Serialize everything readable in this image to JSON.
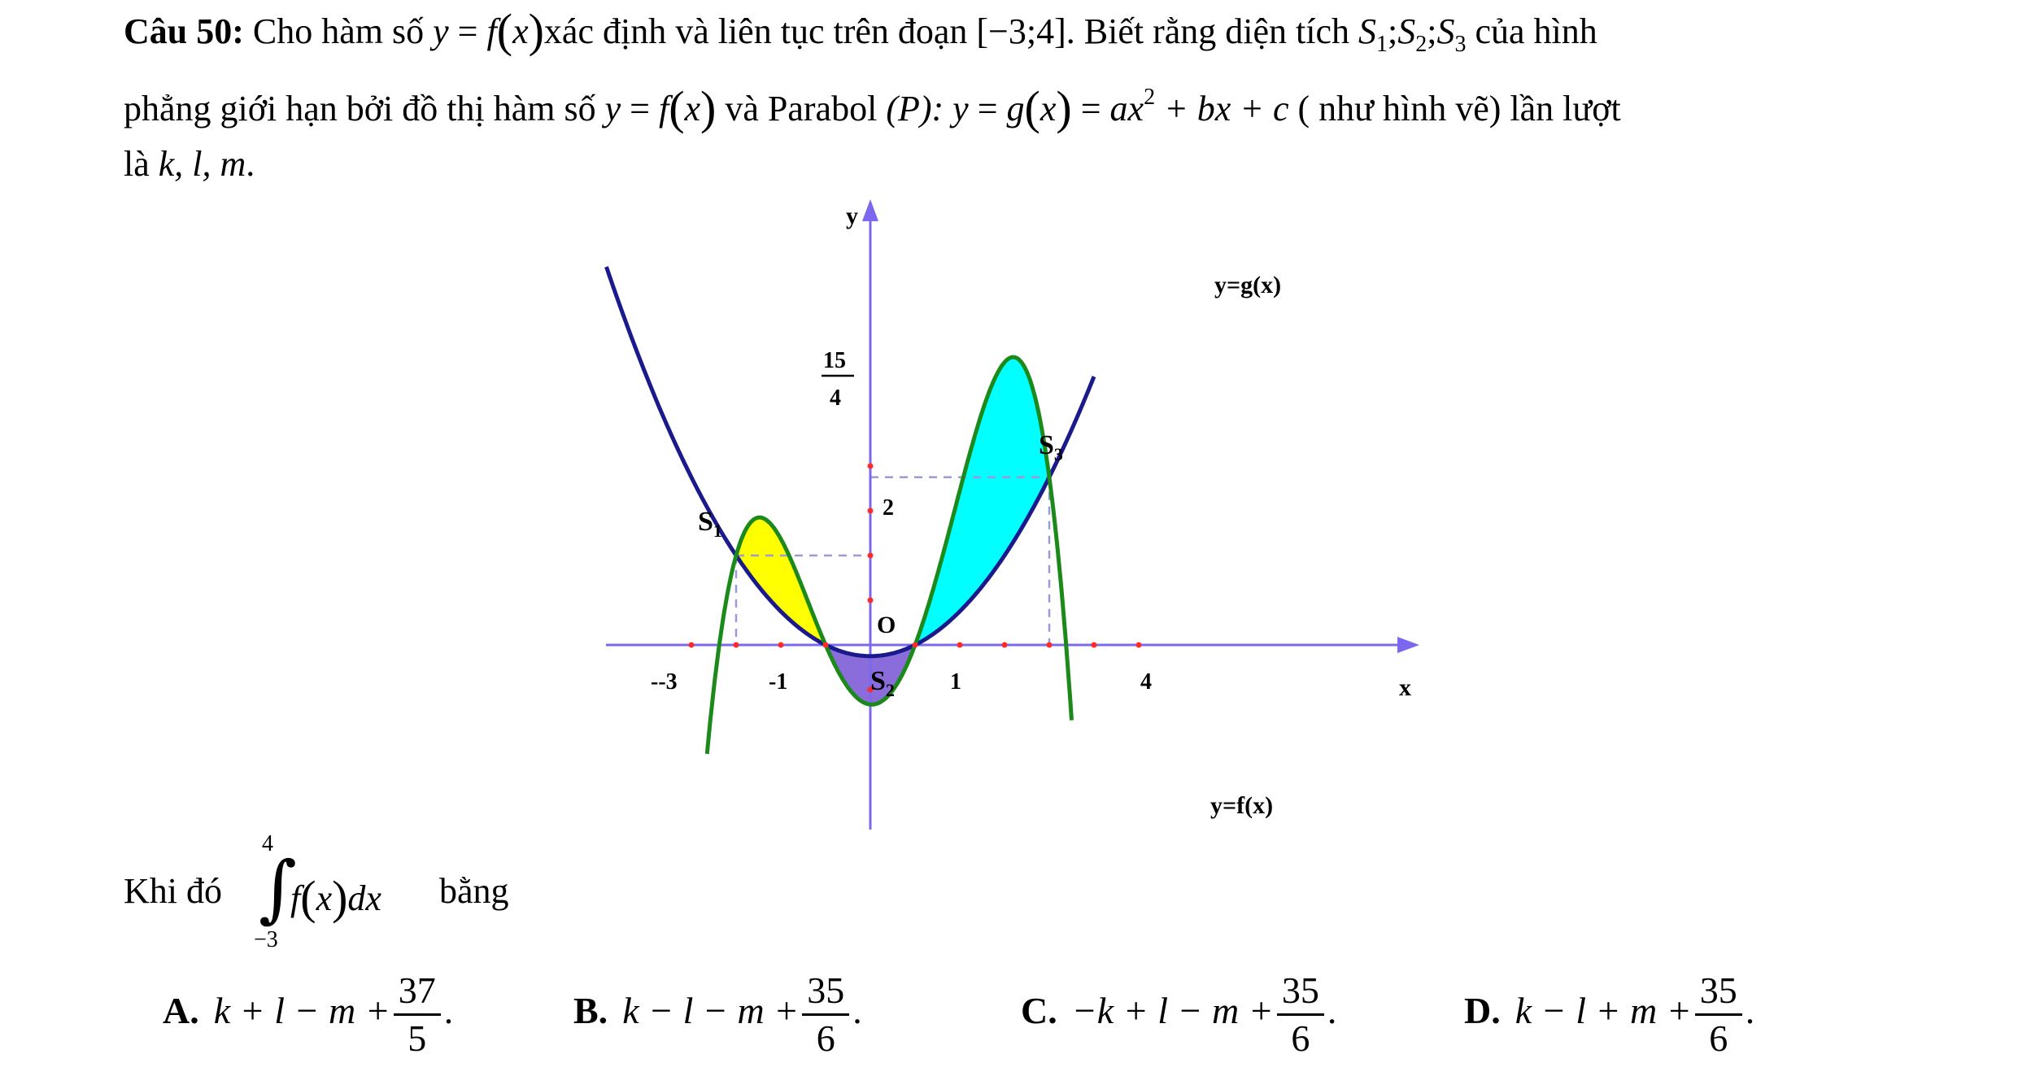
{
  "question": {
    "number_label": "Câu 50:",
    "line1": {
      "t1": "Cho hàm số",
      "t2": "xác định và liên tục trên đoạn",
      "interval": "[−3;4]",
      "t3": ". Biết rằng diện tích",
      "t4": "của hình"
    },
    "line2": {
      "t1": "phẳng giới hạn bởi đồ thị hàm số",
      "t2": "và Parabol",
      "t3": "( như hình vẽ) lần lượt"
    },
    "line3": {
      "t1": "là",
      "vars": "k, l, m",
      "t2": "."
    },
    "integral_line": {
      "t1": "Khi đó",
      "upper": "4",
      "lower": "−3",
      "t2": "bằng"
    }
  },
  "math": {
    "y": "y",
    "eq": "=",
    "f": "f",
    "x": "x",
    "g": "g",
    "S1": "S",
    "S1_sub": "1",
    "S2_sub": "2",
    "S3_sub": "3",
    "P": "(P):",
    "rhs": "ax",
    "sq": "2",
    "rhs2": "+ bx + c",
    "dx": "dx"
  },
  "graph": {
    "axis_x": "x",
    "axis_y": "y",
    "origin": "O",
    "tick_neg3": "--3",
    "tick_neg1": "-1",
    "tick_1": "1",
    "tick_4": "4",
    "tick_2": "2",
    "tick_15": "15",
    "tick_4den": "4",
    "label_g": "y=g(x)",
    "label_f": "y=f(x)",
    "s1": "S",
    "s1_sub": "1",
    "s2": "S",
    "s2_sub": "2",
    "s3": "S",
    "s3_sub": "3",
    "colors": {
      "parabola": "#1a1a8c",
      "f_curve": "#1b8a1b",
      "s1": "#ffff00",
      "s2": "#8a6ddb",
      "s3": "#00ffff",
      "axis": "#7b68ee",
      "dash": "#9a9ad8",
      "tick_dot": "#ff2a2a"
    }
  },
  "options": [
    {
      "label": "A.",
      "expr": "k + l − m +",
      "num": "37",
      "den": "5"
    },
    {
      "label": "B.",
      "expr": "k − l − m +",
      "num": "35",
      "den": "6"
    },
    {
      "label": "C.",
      "expr": "−k + l − m +",
      "num": "35",
      "den": "6"
    },
    {
      "label": "D.",
      "expr": "k − l + m +",
      "num": "35",
      "den": "6"
    }
  ]
}
